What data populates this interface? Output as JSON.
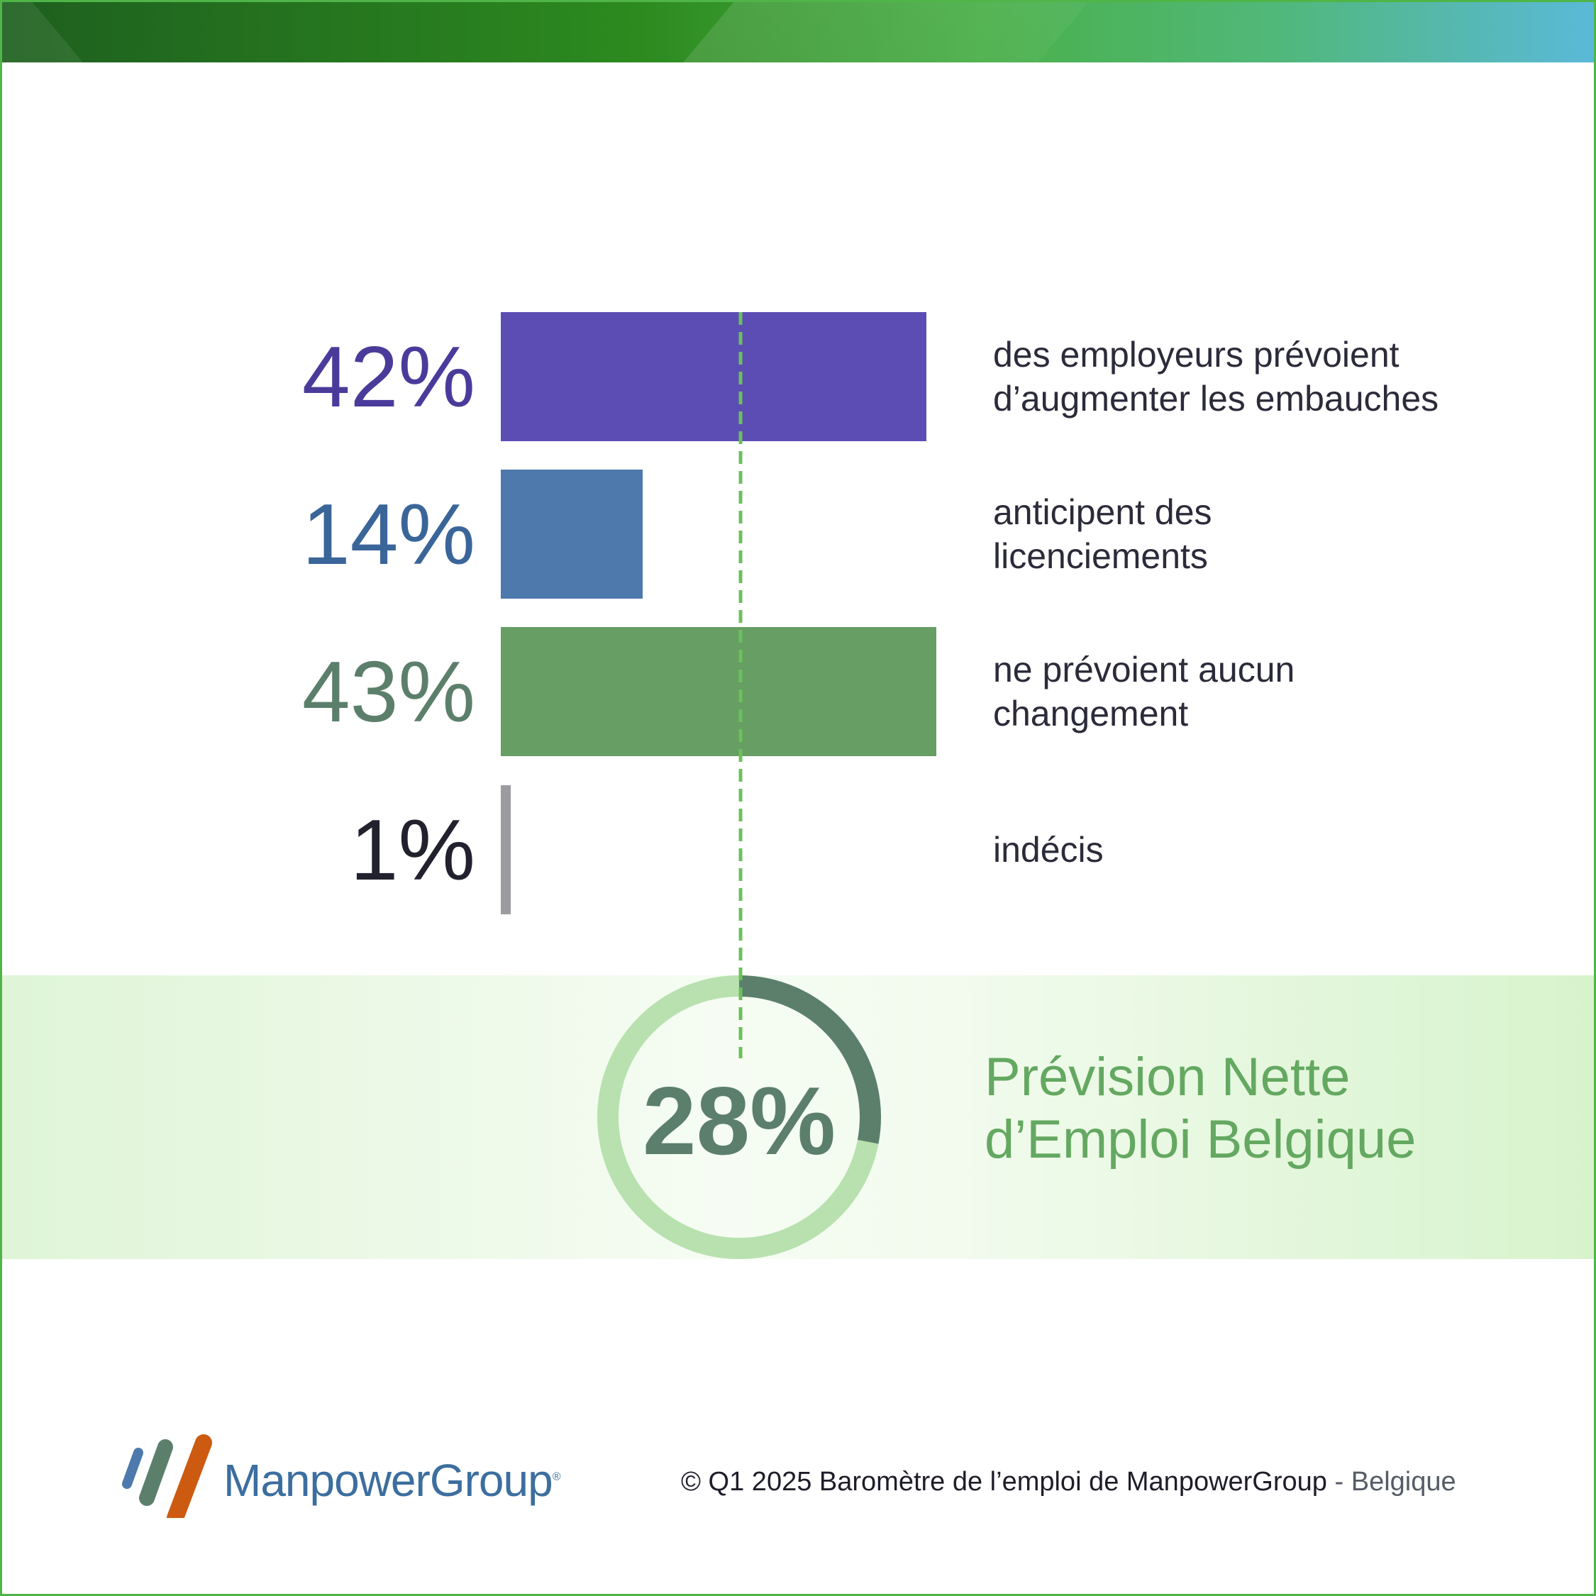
{
  "chart_data": {
    "type": "bar",
    "orientation": "horizontal",
    "values": [
      42,
      14,
      43,
      1
    ],
    "value_labels": [
      "42%",
      "14%",
      "43%",
      "1%"
    ],
    "categories": [
      "des employeurs prévoient\nd’augmenter les embauches",
      "anticipent des\nlicenciements",
      "ne prévoient aucun\nchangement",
      "indécis"
    ],
    "colors": [
      "#5c4db5",
      "#4d79ad",
      "#669e64",
      "#9c9ca0"
    ],
    "label_colors": [
      "#4a3b9b",
      "#3a6599",
      "#5c7f6c",
      "#22222e"
    ],
    "xlim": [
      0,
      43
    ]
  },
  "net": {
    "value": 28,
    "value_label": "28%",
    "label": "Prévision Nette\nd’Emploi Belgique",
    "ring_color": "#b8e1af",
    "arc_color": "#5c7f6c",
    "dashed_line_color": "#6dbf5c"
  },
  "footer": {
    "brand": "ManpowerGroup",
    "source": "© Q1 2025 Baromètre de l’emploi de ManpowerGroup",
    "separator": " - ",
    "region": "Belgique"
  },
  "logo_colors": [
    "#4d79ad",
    "#5c7f6c",
    "#cc5a10"
  ]
}
